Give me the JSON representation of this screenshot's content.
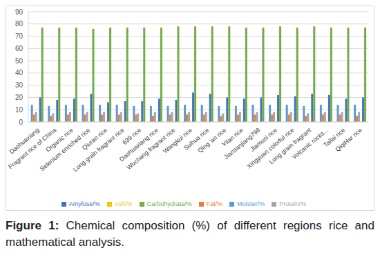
{
  "chart_data": {
    "type": "bar",
    "title": "Figure 1: Chemical composition (%) of different regions rice and mathematical analysis.",
    "categories": [
      "Daohuaxiang",
      "Fragrant rice of China",
      "Organic rice",
      "Selenium enriched rice",
      "Qiuran rice",
      "Long grain fragrant rice",
      "639 rice",
      "Daohuaxiang rice",
      "Wuchang fragrant rice",
      "Wangkui rice",
      "Suihua rice",
      "Qing 'an rice",
      "Yilan rice",
      "Jiansanjiang798",
      "Jiamusi rice",
      "Xingyuan colorful rice",
      "Long grain fragrant",
      "Volcanic rocks...",
      "Tailai rice",
      "QiqiHar rice"
    ],
    "series": [
      {
        "name": "Moister/%",
        "color": "#5b9bd5",
        "values": [
          14,
          13,
          14,
          14,
          14,
          14,
          13,
          13,
          13,
          14,
          14,
          13,
          13,
          14,
          14,
          14,
          13,
          14,
          14,
          14
        ]
      },
      {
        "name": "Fat/%",
        "color": "#ed7d31",
        "values": [
          6,
          5,
          6,
          6,
          6,
          6,
          6,
          5,
          6,
          6,
          6,
          5,
          6,
          6,
          6,
          6,
          5,
          6,
          6,
          5
        ]
      },
      {
        "name": "Protein/%",
        "color": "#a5a5a5",
        "values": [
          8,
          7,
          8,
          8,
          8,
          8,
          7,
          8,
          8,
          8,
          8,
          7,
          8,
          8,
          8,
          8,
          7,
          8,
          8,
          8
        ]
      },
      {
        "name": "Ash/%",
        "color": "#ffc000",
        "values": [
          0.5,
          0.5,
          0.5,
          0.5,
          0.5,
          0.5,
          0.5,
          0.5,
          0.5,
          0.5,
          0.5,
          0.5,
          0.5,
          0.5,
          0.5,
          0.5,
          0.5,
          0.5,
          0.5,
          0.5
        ]
      },
      {
        "name": "Amylose/%",
        "color": "#4472c4",
        "values": [
          20,
          18,
          19,
          23,
          16,
          17,
          17,
          19,
          18,
          24,
          23,
          20,
          19,
          20,
          22,
          21,
          23,
          22,
          19,
          20
        ]
      },
      {
        "name": "Carbohydrate/%",
        "color": "#70ad47",
        "values": [
          77,
          77,
          77,
          76,
          77,
          77,
          77,
          77,
          78,
          78,
          78,
          78,
          77,
          77,
          78,
          77,
          78,
          77,
          77,
          77
        ]
      }
    ],
    "ylim": [
      0,
      90
    ],
    "yticks": [
      0,
      10,
      20,
      30,
      40,
      50,
      60,
      70,
      80,
      90
    ],
    "grid": true,
    "legend": "bottom"
  }
}
